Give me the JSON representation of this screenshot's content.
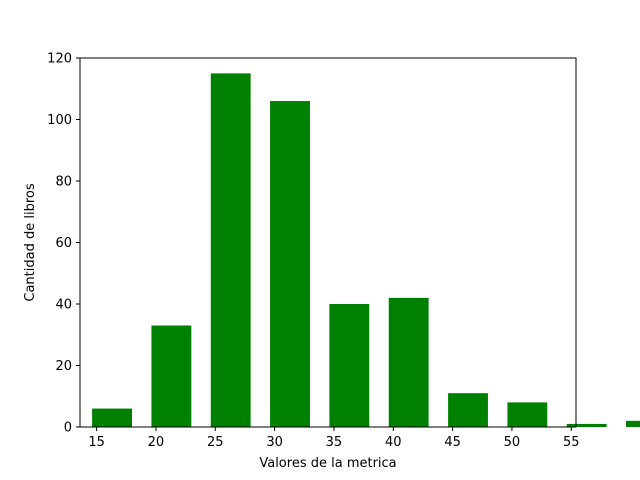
{
  "chart_data": {
    "type": "bar",
    "title": "",
    "xlabel": "Valores de la metrica",
    "ylabel": "Cantidad de libros",
    "bar_color": "#008000",
    "bar_width": 3.5,
    "x": [
      17,
      22,
      27,
      32,
      37,
      42,
      47,
      52,
      57,
      62
    ],
    "x_display": [
      16.3,
      21.3,
      26.3,
      31.3,
      36.3,
      41.3,
      46.3,
      51.3,
      56.3,
      61.3
    ],
    "values": [
      6,
      33,
      115,
      106,
      40,
      42,
      11,
      8,
      1,
      2
    ],
    "xlim": [
      13.6,
      63.6
    ],
    "ylim": [
      0,
      120
    ],
    "xticks": [
      15,
      20,
      25,
      30,
      35,
      40,
      45,
      50,
      55
    ],
    "xtick_labels": [
      "15",
      "20",
      "25",
      "30",
      "35",
      "40",
      "45",
      "50",
      "55"
    ],
    "yticks": [
      0,
      20,
      40,
      60,
      80,
      100,
      120
    ],
    "ytick_labels": [
      "0",
      "20",
      "40",
      "60",
      "80",
      "100",
      "120"
    ],
    "grid": false,
    "legend": "none"
  }
}
